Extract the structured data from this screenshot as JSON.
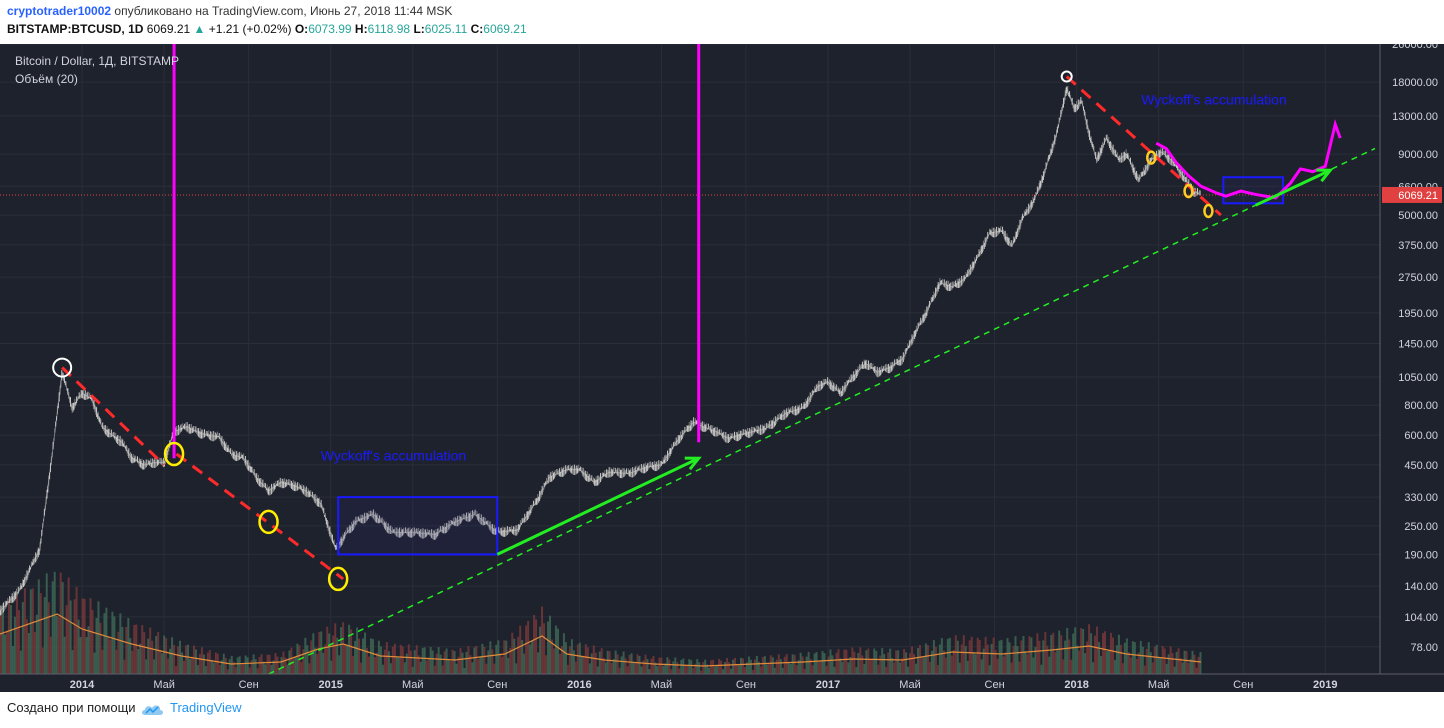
{
  "header": {
    "author": "cryptotrader10002",
    "published_text": "опубликовано на TradingView.com, Июнь 27, 2018 11:44 MSK",
    "symbol": "BITSTAMP:BTCUSD, 1D",
    "price": "6069.21",
    "change": "+1.21 (+0.02%)",
    "o_label": "O:",
    "o_value": "6073.99",
    "h_label": "H:",
    "h_value": "6118.98",
    "l_label": "L:",
    "l_value": "6025.11",
    "c_label": "C:",
    "c_value": "6069.21"
  },
  "legend": {
    "title": "Bitcoin / Dollar, 1Д, BITSTAMP",
    "volume": "Объём (20)"
  },
  "footer": {
    "made_with": "Создано при помощи",
    "brand": "TradingView"
  },
  "colors": {
    "background": "#1e222d",
    "grid": "#2a2e39",
    "candle_up": "#c8c8c8",
    "candle_down": "#7a7a7a",
    "trend_red": "#ff2a2a",
    "trend_green": "#22ee22",
    "accumulation_box": "#1a1aff",
    "magenta": "#ff00ff",
    "circle_yellow": "#ffee00",
    "circle_white": "#ffffff",
    "volume_ma": "#e08b3a",
    "price_line": "#e04040"
  },
  "chart_data": {
    "type": "line",
    "title": "Bitcoin / Dollar, 1Д, BITSTAMP",
    "y_scale": "log",
    "ylim": [
      60,
      26000
    ],
    "y_ticks": [
      78,
      104,
      140,
      190,
      250,
      330,
      450,
      600,
      800,
      1050,
      1450,
      1950,
      2750,
      3750,
      5000,
      6600,
      9000,
      13000,
      18000,
      26000
    ],
    "y_tick_labels": [
      "78.00",
      "104.00",
      "140.00",
      "190.00",
      "250.00",
      "330.00",
      "450.00",
      "600.00",
      "800.00",
      "1050.00",
      "1450.00",
      "1950.00",
      "2750.00",
      "3750.00",
      "5000.00",
      "6600.00",
      "9000.00",
      "13000.00",
      "18000.00",
      "26000.00"
    ],
    "x_range": [
      2013.67,
      2019.22
    ],
    "x_ticks": [
      {
        "t": 2014.0,
        "label": "2014",
        "bold": true
      },
      {
        "t": 2014.33,
        "label": "Май",
        "bold": false
      },
      {
        "t": 2014.67,
        "label": "Сен",
        "bold": false
      },
      {
        "t": 2015.0,
        "label": "2015",
        "bold": true
      },
      {
        "t": 2015.33,
        "label": "Май",
        "bold": false
      },
      {
        "t": 2015.67,
        "label": "Сен",
        "bold": false
      },
      {
        "t": 2016.0,
        "label": "2016",
        "bold": true
      },
      {
        "t": 2016.33,
        "label": "Май",
        "bold": false
      },
      {
        "t": 2016.67,
        "label": "Сен",
        "bold": false
      },
      {
        "t": 2017.0,
        "label": "2017",
        "bold": true
      },
      {
        "t": 2017.33,
        "label": "Май",
        "bold": false
      },
      {
        "t": 2017.67,
        "label": "Сен",
        "bold": false
      },
      {
        "t": 2018.0,
        "label": "2018",
        "bold": true
      },
      {
        "t": 2018.33,
        "label": "Май",
        "bold": false
      },
      {
        "t": 2018.67,
        "label": "Сен",
        "bold": false
      },
      {
        "t": 2019.0,
        "label": "2019",
        "bold": true
      }
    ],
    "price_series": [
      [
        2013.67,
        110
      ],
      [
        2013.75,
        135
      ],
      [
        2013.83,
        200
      ],
      [
        2013.88,
        500
      ],
      [
        2013.92,
        1100
      ],
      [
        2013.96,
        780
      ],
      [
        2014.0,
        900
      ],
      [
        2014.04,
        850
      ],
      [
        2014.08,
        650
      ],
      [
        2014.12,
        600
      ],
      [
        2014.16,
        560
      ],
      [
        2014.2,
        480
      ],
      [
        2014.25,
        450
      ],
      [
        2014.29,
        460
      ],
      [
        2014.33,
        460
      ],
      [
        2014.37,
        620
      ],
      [
        2014.42,
        650
      ],
      [
        2014.46,
        620
      ],
      [
        2014.5,
        600
      ],
      [
        2014.55,
        590
      ],
      [
        2014.6,
        500
      ],
      [
        2014.65,
        480
      ],
      [
        2014.7,
        400
      ],
      [
        2014.75,
        350
      ],
      [
        2014.8,
        380
      ],
      [
        2014.85,
        370
      ],
      [
        2014.9,
        350
      ],
      [
        2014.96,
        310
      ],
      [
        2015.02,
        200
      ],
      [
        2015.06,
        230
      ],
      [
        2015.1,
        260
      ],
      [
        2015.17,
        280
      ],
      [
        2015.25,
        235
      ],
      [
        2015.33,
        235
      ],
      [
        2015.42,
        230
      ],
      [
        2015.5,
        260
      ],
      [
        2015.58,
        280
      ],
      [
        2015.67,
        235
      ],
      [
        2015.75,
        240
      ],
      [
        2015.83,
        320
      ],
      [
        2015.88,
        400
      ],
      [
        2015.95,
        430
      ],
      [
        2016.0,
        430
      ],
      [
        2016.06,
        380
      ],
      [
        2016.12,
        420
      ],
      [
        2016.2,
        415
      ],
      [
        2016.27,
        440
      ],
      [
        2016.33,
        450
      ],
      [
        2016.4,
        580
      ],
      [
        2016.46,
        680
      ],
      [
        2016.5,
        650
      ],
      [
        2016.55,
        620
      ],
      [
        2016.6,
        580
      ],
      [
        2016.67,
        610
      ],
      [
        2016.75,
        640
      ],
      [
        2016.83,
        740
      ],
      [
        2016.9,
        780
      ],
      [
        2016.96,
        960
      ],
      [
        2017.0,
        1000
      ],
      [
        2017.05,
        900
      ],
      [
        2017.1,
        1050
      ],
      [
        2017.15,
        1200
      ],
      [
        2017.2,
        1100
      ],
      [
        2017.25,
        1150
      ],
      [
        2017.3,
        1250
      ],
      [
        2017.35,
        1600
      ],
      [
        2017.4,
        2000
      ],
      [
        2017.45,
        2600
      ],
      [
        2017.5,
        2500
      ],
      [
        2017.55,
        2700
      ],
      [
        2017.6,
        3300
      ],
      [
        2017.65,
        4200
      ],
      [
        2017.7,
        4300
      ],
      [
        2017.74,
        3700
      ],
      [
        2017.78,
        4800
      ],
      [
        2017.83,
        5800
      ],
      [
        2017.87,
        7500
      ],
      [
        2017.92,
        11000
      ],
      [
        2017.96,
        17000
      ],
      [
        2017.99,
        14000
      ],
      [
        2018.02,
        15000
      ],
      [
        2018.05,
        11000
      ],
      [
        2018.08,
        8500
      ],
      [
        2018.12,
        10500
      ],
      [
        2018.17,
        8500
      ],
      [
        2018.2,
        9000
      ],
      [
        2018.25,
        7000
      ],
      [
        2018.3,
        8500
      ],
      [
        2018.34,
        9200
      ],
      [
        2018.38,
        8500
      ],
      [
        2018.42,
        7500
      ],
      [
        2018.47,
        6300
      ],
      [
        2018.5,
        6069
      ]
    ],
    "volume_ma": [
      [
        2013.67,
        40
      ],
      [
        2013.9,
        60
      ],
      [
        2014.0,
        45
      ],
      [
        2014.2,
        30
      ],
      [
        2014.4,
        18
      ],
      [
        2014.6,
        10
      ],
      [
        2014.8,
        12
      ],
      [
        2014.95,
        25
      ],
      [
        2015.05,
        30
      ],
      [
        2015.2,
        18
      ],
      [
        2015.5,
        14
      ],
      [
        2015.7,
        20
      ],
      [
        2015.85,
        38
      ],
      [
        2015.95,
        20
      ],
      [
        2016.1,
        14
      ],
      [
        2016.3,
        10
      ],
      [
        2016.5,
        8
      ],
      [
        2016.7,
        10
      ],
      [
        2016.9,
        12
      ],
      [
        2017.1,
        15
      ],
      [
        2017.3,
        14
      ],
      [
        2017.5,
        22
      ],
      [
        2017.7,
        20
      ],
      [
        2017.9,
        24
      ],
      [
        2018.05,
        28
      ],
      [
        2018.2,
        20
      ],
      [
        2018.35,
        16
      ],
      [
        2018.5,
        12
      ]
    ],
    "annotations": {
      "red_trendlines": [
        [
          [
            2013.92,
            1150
          ],
          [
            2014.33,
            450
          ]
        ],
        [
          [
            2014.38,
            500
          ],
          [
            2015.05,
            150
          ]
        ],
        [
          [
            2017.96,
            19000
          ],
          [
            2018.58,
            5000
          ]
        ]
      ],
      "green_dashed_support": [
        [
          2014.75,
          60
        ],
        [
          2019.2,
          9500
        ]
      ],
      "green_arrows": [
        [
          [
            2015.67,
            190
          ],
          [
            2016.48,
            480
          ]
        ],
        [
          [
            2018.72,
            5500
          ],
          [
            2019.02,
            7700
          ]
        ]
      ],
      "magenta_vertical_lines": [
        2014.37,
        2016.48
      ],
      "accumulation_boxes": [
        {
          "label": "Wyckoff's accumulation",
          "t0": 2015.03,
          "t1": 2015.67,
          "p_low": 190,
          "p_high": 330
        },
        {
          "label": "Wyckoff's accumulation",
          "t0": 2018.59,
          "t1": 2018.83,
          "p_low": 5600,
          "p_high": 7200
        }
      ],
      "projection_path": [
        [
          2018.32,
          10000
        ],
        [
          2018.36,
          9500
        ],
        [
          2018.4,
          8300
        ],
        [
          2018.45,
          7300
        ],
        [
          2018.5,
          6600
        ],
        [
          2018.56,
          6200
        ],
        [
          2018.6,
          6000
        ],
        [
          2018.66,
          6300
        ],
        [
          2018.72,
          6100
        ],
        [
          2018.8,
          5900
        ],
        [
          2018.86,
          6800
        ],
        [
          2018.9,
          7800
        ],
        [
          2018.95,
          7600
        ],
        [
          2019.0,
          8000
        ],
        [
          2019.04,
          12000
        ],
        [
          2019.06,
          10500
        ]
      ],
      "circles_yellow": [
        [
          2014.37,
          500
        ],
        [
          2014.75,
          260
        ],
        [
          2015.03,
          150
        ],
        [
          2018.3,
          8700
        ],
        [
          2018.45,
          6300
        ],
        [
          2018.53,
          5200
        ]
      ],
      "circles_white": [
        [
          2013.92,
          1150
        ],
        [
          2017.96,
          19000
        ]
      ],
      "current_price": 6069.21
    }
  }
}
